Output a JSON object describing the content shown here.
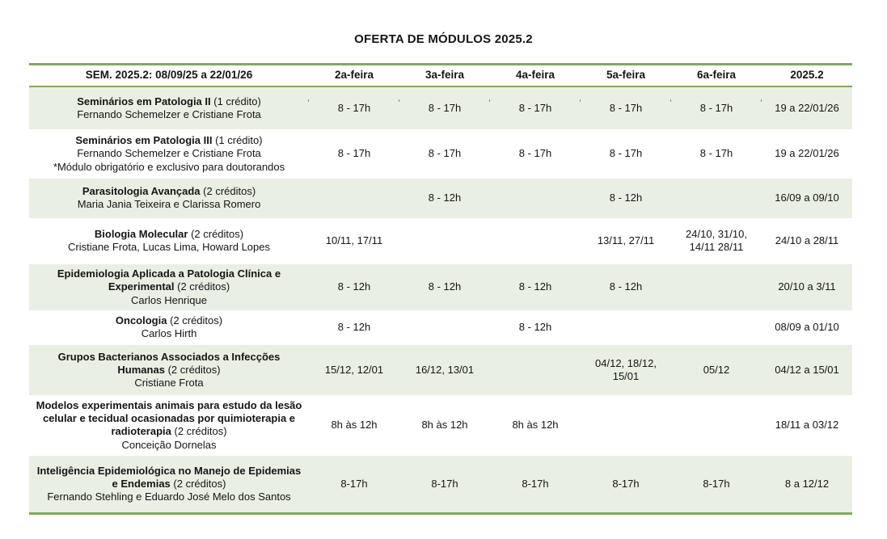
{
  "title": "OFERTA DE MÓDULOS 2025.2",
  "colors": {
    "accent_green": "#84A65F",
    "row_shade": "#EAEFE4",
    "text": "#151515"
  },
  "table": {
    "columns": [
      "SEM. 2025.2: 08/09/25 a 22/01/26",
      "2a-feira",
      "3a-feira",
      "4a-feira",
      "5a-feira",
      "6a-feira",
      "2025.2"
    ],
    "rows": [
      {
        "module": "Seminários em Patologia II",
        "credits": "(1 crédito)",
        "details": [
          "Fernando Schemelzer e Cristiane Frota"
        ],
        "cells": [
          "8 - 17h",
          "8 - 17h",
          "8 - 17h",
          "8 - 17h",
          "8 - 17h",
          "19 a 22/01/26"
        ]
      },
      {
        "module": "Seminários em Patologia III",
        "credits": "(1 crédito)",
        "details": [
          "Fernando Schemelzer e Cristiane Frota",
          "*Módulo obrigatório e exclusivo para doutorandos"
        ],
        "cells": [
          "8 - 17h",
          "8 - 17h",
          "8 - 17h",
          "8 - 17h",
          "8 - 17h",
          "19 a 22/01/26"
        ]
      },
      {
        "module": "Parasitologia Avançada",
        "credits": "(2 créditos)",
        "details": [
          "Maria Jania Teixeira e Clarissa Romero"
        ],
        "cells": [
          "",
          "8 - 12h",
          "",
          "8 - 12h",
          "",
          "16/09 a 09/10"
        ]
      },
      {
        "module": "Biologia Molecular",
        "credits": "(2 créditos)",
        "details": [
          "Cristiane Frota, Lucas Lima, Howard Lopes"
        ],
        "cells": [
          "10/11, 17/11",
          "",
          "",
          "13/11, 27/11",
          "24/10, 31/10, 14/11 28/11",
          "24/10 a 28/11"
        ]
      },
      {
        "module": "Epidemiologia Aplicada a Patologia Clínica e Experimental",
        "credits": "(2 créditos)",
        "details": [
          "Carlos Henrique"
        ],
        "cells": [
          "8 - 12h",
          "8 - 12h",
          "8 - 12h",
          "8 - 12h",
          "",
          "20/10 a 3/11"
        ]
      },
      {
        "module": "Oncologia",
        "credits": "(2 créditos)",
        "details": [
          "Carlos Hirth"
        ],
        "cells": [
          "8 - 12h",
          "",
          "8 - 12h",
          "",
          "",
          "08/09 a 01/10"
        ]
      },
      {
        "module": "Grupos Bacterianos Associados a Infecções Humanas",
        "credits": "(2 créditos)",
        "details": [
          "Cristiane Frota"
        ],
        "cells": [
          "15/12, 12/01",
          "16/12, 13/01",
          "",
          "04/12, 18/12, 15/01",
          "05/12",
          "04/12 a 15/01"
        ]
      },
      {
        "module": "Modelos experimentais animais para estudo da lesão celular e tecidual ocasionadas por quimioterapia e radioterapia",
        "credits": "(2 créditos)",
        "details": [
          "Conceição Dornelas"
        ],
        "cells": [
          "8h às 12h",
          "8h às 12h",
          "8h às 12h",
          "",
          "",
          "18/11 a 03/12"
        ]
      },
      {
        "module": "Inteligência Epidemiológica no Manejo de Epidemias e Endemias",
        "credits": "(2 créditos)",
        "details": [
          "Fernando Stehling e Eduardo José Melo dos Santos"
        ],
        "cells": [
          "8-17h",
          "8-17h",
          "8-17h",
          "8-17h",
          "8-17h",
          "8 a 12/12"
        ]
      }
    ]
  }
}
